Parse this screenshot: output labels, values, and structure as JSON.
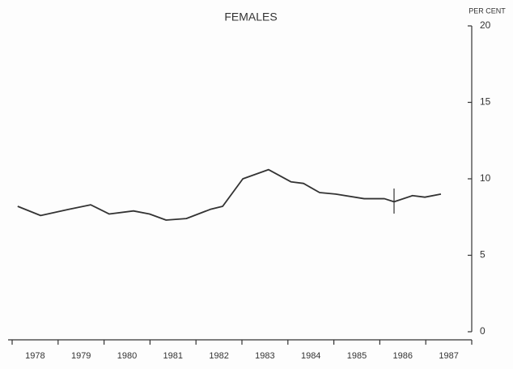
{
  "chart_data": {
    "type": "line",
    "title": "FEMALES",
    "y_axis_label": "PER CENT",
    "x": [
      1978.12,
      1978.62,
      1979.23,
      1979.71,
      1980.11,
      1980.64,
      1980.99,
      1981.35,
      1981.79,
      1982.31,
      1982.58,
      1983.02,
      1983.58,
      1984.07,
      1984.34,
      1984.69,
      1985.04,
      1985.66,
      1986.1,
      1986.31,
      1986.71,
      1986.98,
      1987.33
    ],
    "values": [
      8.2,
      7.6,
      8.0,
      8.3,
      7.7,
      7.9,
      7.7,
      7.3,
      7.4,
      8.0,
      8.2,
      10.0,
      10.6,
      9.8,
      9.7,
      9.1,
      9.0,
      8.7,
      8.7,
      8.5,
      8.9,
      8.8,
      9.0
    ],
    "color": "#333333",
    "xlim": [
      1978,
      1988
    ],
    "xticks": [
      {
        "value": 1978.5,
        "label": "1978"
      },
      {
        "value": 1979.5,
        "label": "1979"
      },
      {
        "value": 1980.5,
        "label": "1980"
      },
      {
        "value": 1981.5,
        "label": "1981"
      },
      {
        "value": 1982.5,
        "label": "1982"
      },
      {
        "value": 1983.5,
        "label": "1983"
      },
      {
        "value": 1984.5,
        "label": "1984"
      },
      {
        "value": 1985.5,
        "label": "1985"
      },
      {
        "value": 1986.5,
        "label": "1986"
      },
      {
        "value": 1987.5,
        "label": "1987"
      }
    ],
    "xticks_minor": [
      1978,
      1979,
      1980,
      1981,
      1982,
      1983,
      1984,
      1985,
      1986,
      1987,
      1988
    ],
    "ylim": [
      0,
      20
    ],
    "yticks": [
      0,
      5,
      10,
      15,
      20
    ],
    "y_axis_side": "right",
    "grid": false
  }
}
